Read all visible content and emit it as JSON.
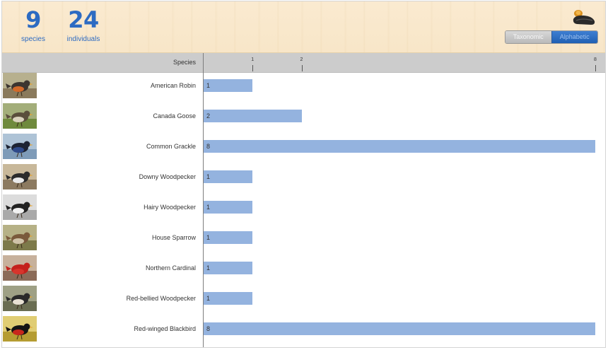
{
  "header": {
    "species_count": "9",
    "species_label": "species",
    "individuals_count": "24",
    "individuals_label": "individuals",
    "sort_options": [
      "Taxonomic",
      "Alphabetic"
    ],
    "sort_selected": "Alphabetic",
    "badge_icon": "binoculars-icon"
  },
  "table": {
    "species_column": "Species"
  },
  "colors": {
    "accent": "#2d6bc2",
    "bar": "#94b3df",
    "header_bg": "#f8e6c8",
    "column_header_bg": "#cccccc"
  },
  "chart_data": {
    "type": "bar",
    "orientation": "horizontal",
    "x_ticks": [
      1,
      2,
      8
    ],
    "xlim": [
      0,
      8
    ],
    "categories": [
      "American Robin",
      "Canada Goose",
      "Common Grackle",
      "Downy Woodpecker",
      "Hairy Woodpecker",
      "House Sparrow",
      "Northern Cardinal",
      "Red-bellied Woodpecker",
      "Red-winged Blackbird"
    ],
    "values": [
      1,
      2,
      8,
      1,
      1,
      1,
      1,
      1,
      8
    ],
    "data_labels": [
      "1",
      "2",
      "8",
      "1",
      "1",
      "1",
      "1",
      "1",
      "8"
    ]
  },
  "rows": [
    {
      "name": "American Robin",
      "count": "1",
      "photo": "robin"
    },
    {
      "name": "Canada Goose",
      "count": "2",
      "photo": "goose"
    },
    {
      "name": "Common Grackle",
      "count": "8",
      "photo": "grackle"
    },
    {
      "name": "Downy Woodpecker",
      "count": "1",
      "photo": "downy"
    },
    {
      "name": "Hairy Woodpecker",
      "count": "1",
      "photo": "hairy"
    },
    {
      "name": "House Sparrow",
      "count": "1",
      "photo": "sparrow"
    },
    {
      "name": "Northern Cardinal",
      "count": "1",
      "photo": "cardinal"
    },
    {
      "name": "Red-bellied Woodpecker",
      "count": "1",
      "photo": "redbellied"
    },
    {
      "name": "Red-winged Blackbird",
      "count": "8",
      "photo": "blackbird"
    }
  ]
}
